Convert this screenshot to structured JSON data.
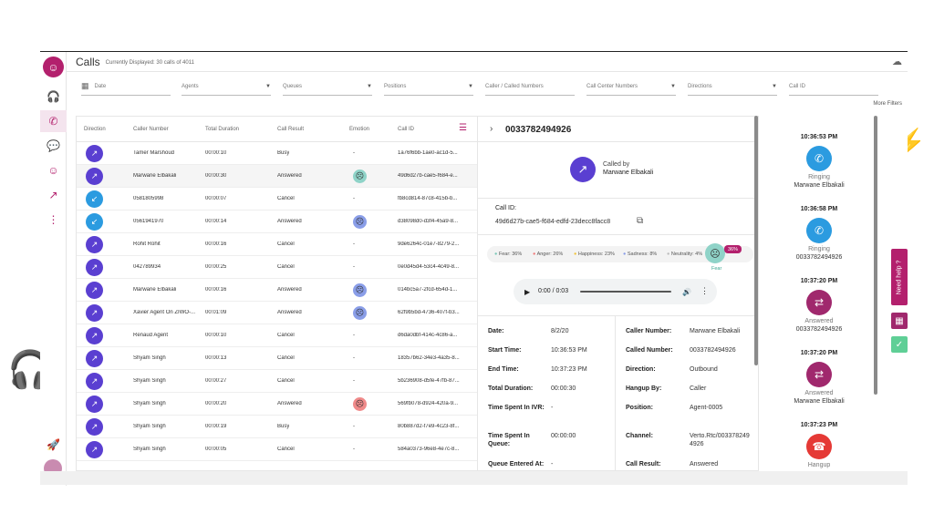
{
  "page": {
    "title": "Calls",
    "subtitle": "Currently Displayed: 30 calls of 4011"
  },
  "filters": {
    "date": "Date",
    "agents": "Agents",
    "queues": "Queues",
    "positions": "Positions",
    "caller_numbers": "Caller / Called Numbers",
    "center_numbers": "Call Center Numbers",
    "directions": "Directions",
    "call_id": "Call ID",
    "more": "More Filters"
  },
  "table": {
    "columns": [
      "Direction",
      "Caller Number",
      "Total Duration",
      "Call Result",
      "Emotion",
      "Call ID"
    ],
    "rows": [
      {
        "dir": "out",
        "caller": "Tamer Marshoud",
        "duration": "00:00:10",
        "result": "Busy",
        "emotion": "-",
        "emo_color": "",
        "call_id": "1a76f6bb-1ae0-ac1d-5..."
      },
      {
        "dir": "out",
        "caller": "Marwane Elbakali",
        "duration": "00:00:30",
        "result": "Answered",
        "emotion": "",
        "emo_color": "#8fd3c8",
        "call_id": "49d6d27b-cae5-f684-e...",
        "selected": true
      },
      {
        "dir": "in",
        "caller": "0581805998",
        "duration": "00:00:07",
        "result": "Cancel",
        "emotion": "-",
        "emo_color": "",
        "call_id": "fb8cd814-87c8-415b-b..."
      },
      {
        "dir": "in",
        "caller": "0561941970",
        "duration": "00:00:14",
        "result": "Answered",
        "emotion": "",
        "emo_color": "#8a9ee8",
        "call_id": "d38098d0-d3f4-45a9-8..."
      },
      {
        "dir": "out",
        "caller": "Rohit Rohit",
        "duration": "00:00:16",
        "result": "Cancel",
        "emotion": "-",
        "emo_color": "",
        "call_id": "9de6264c-01e7-8279-2..."
      },
      {
        "dir": "out",
        "caller": "042789934",
        "duration": "00:00:25",
        "result": "Cancel",
        "emotion": "-",
        "emo_color": "",
        "call_id": "0e0d45d4-53c4-4c49-8..."
      },
      {
        "dir": "out",
        "caller": "Marwane Elbakali",
        "duration": "00:00:16",
        "result": "Answered",
        "emotion": "",
        "emo_color": "#8a9ee8",
        "call_id": "014bc5a7-2fcd-654d-1..."
      },
      {
        "dir": "out",
        "caller": "Xavier Agent On ZIWO-...",
        "duration": "00:01:09",
        "result": "Answered",
        "emotion": "",
        "emo_color": "#8a9ee8",
        "call_id": "62f9b5bd-4736-407f-b3..."
      },
      {
        "dir": "out",
        "caller": "Renaud Agent",
        "duration": "00:00:10",
        "result": "Cancel",
        "emotion": "-",
        "emo_color": "",
        "call_id": "d6da0dbf-414c-4c86-a..."
      },
      {
        "dir": "out",
        "caller": "Shyam Singh",
        "duration": "00:00:13",
        "result": "Cancel",
        "emotion": "-",
        "emo_color": "",
        "call_id": "18357b62-34e3-4a35-8..."
      },
      {
        "dir": "out",
        "caller": "Shyam Singh",
        "duration": "00:00:27",
        "result": "Cancel",
        "emotion": "-",
        "emo_color": "",
        "call_id": "5b236908-d5fe-47fb-87..."
      },
      {
        "dir": "out",
        "caller": "Shyam Singh",
        "duration": "00:00:20",
        "result": "Answered",
        "emotion": "",
        "emo_color": "#f08a8a",
        "call_id": "569fb078-d924-420a-9..."
      },
      {
        "dir": "out",
        "caller": "Shyam Singh",
        "duration": "00:00:19",
        "result": "Busy",
        "emotion": "-",
        "emo_color": "",
        "call_id": "80b887d2-f7e9-4c23-8f..."
      },
      {
        "dir": "out",
        "caller": "Shyam Singh",
        "duration": "00:00:05",
        "result": "Cancel",
        "emotion": "-",
        "emo_color": "",
        "call_id": "584a0373-96e8-4e7c-8..."
      }
    ]
  },
  "detail": {
    "number": "0033782494926",
    "called_by_label": "Called by",
    "called_by_name": "Marwane Elbakali",
    "call_id_label": "Call ID:",
    "call_id_value": "49d6d27b-cae5-f684-edfd-23decc8facc8",
    "emotions": [
      "Fear: 36%",
      "Anger: 26%",
      "Happiness: 23%",
      "Sadness: 8%",
      "Neutrality: 4%"
    ],
    "emotion_colors": [
      "#7cc7b8",
      "#f07a7a",
      "#f2c43d",
      "#8a9ee8",
      "#bbbbbb"
    ],
    "dominant_badge": "36%",
    "dominant_label": "Fear",
    "player_time": "0:00 / 0:03",
    "left_fields": [
      {
        "k": "Date:",
        "v": "8/2/20"
      },
      {
        "k": "Start Time:",
        "v": "10:36:53 PM"
      },
      {
        "k": "End Time:",
        "v": "10:37:23 PM"
      },
      {
        "k": "Total Duration:",
        "v": "00:00:30"
      },
      {
        "k": "Time Spent In IVR:",
        "v": "-"
      },
      {
        "k": "Time Spent In Queue:",
        "v": "00:00:00"
      },
      {
        "k": "Queue Entered At:",
        "v": "-"
      }
    ],
    "right_fields": [
      {
        "k": "Caller Number:",
        "v": "Marwane Elbakali"
      },
      {
        "k": "Called Number:",
        "v": "0033782494926"
      },
      {
        "k": "Direction:",
        "v": "Outbound"
      },
      {
        "k": "Hangup By:",
        "v": "Caller"
      },
      {
        "k": "Position:",
        "v": "Agent-0005"
      },
      {
        "k": "Channel:",
        "v": "Verto.Rtc/0033782494926"
      },
      {
        "k": "Call Result:",
        "v": "Answered"
      }
    ]
  },
  "timeline": [
    {
      "time": "10:36:53 PM",
      "status": "Ringing",
      "who": "Marwane Elbakali",
      "icon": "ringing-icon",
      "color": "#2b9be0"
    },
    {
      "time": "10:36:58 PM",
      "status": "Ringing",
      "who": "0033782494926",
      "icon": "ringing-icon",
      "color": "#2b9be0"
    },
    {
      "time": "10:37:20 PM",
      "status": "Answered",
      "who": "0033782494926",
      "icon": "answered-icon",
      "color": "#a0286d"
    },
    {
      "time": "10:37:20 PM",
      "status": "Answered",
      "who": "Marwane Elbakali",
      "icon": "answered-icon",
      "color": "#a0286d"
    },
    {
      "time": "10:37:23 PM",
      "status": "Hangup",
      "who": "",
      "icon": "hangup-icon",
      "color": "#e53935"
    }
  ],
  "help": {
    "label": "Need help ?"
  },
  "colors": {
    "brand": "#b3206d",
    "outbound": "#5a3fd1",
    "inbound": "#2b9be0"
  }
}
